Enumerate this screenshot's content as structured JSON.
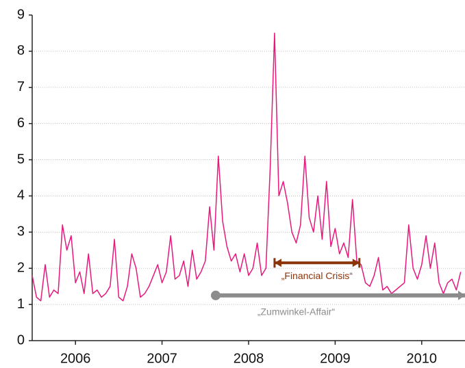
{
  "chart_data": {
    "type": "line",
    "x": [
      2006.0,
      2006.05,
      2006.1,
      2006.15,
      2006.2,
      2006.25,
      2006.3,
      2006.35,
      2006.4,
      2006.45,
      2006.5,
      2006.55,
      2006.6,
      2006.65,
      2006.7,
      2006.75,
      2006.8,
      2006.85,
      2006.9,
      2006.95,
      2007.0,
      2007.05,
      2007.1,
      2007.15,
      2007.2,
      2007.25,
      2007.3,
      2007.35,
      2007.4,
      2007.45,
      2007.5,
      2007.55,
      2007.6,
      2007.65,
      2007.7,
      2007.75,
      2007.8,
      2007.85,
      2007.9,
      2007.95,
      2008.0,
      2008.05,
      2008.1,
      2008.15,
      2008.2,
      2008.25,
      2008.3,
      2008.35,
      2008.4,
      2008.45,
      2008.5,
      2008.55,
      2008.6,
      2008.65,
      2008.7,
      2008.75,
      2008.8,
      2008.85,
      2008.9,
      2008.95,
      2009.0,
      2009.05,
      2009.1,
      2009.15,
      2009.2,
      2009.25,
      2009.3,
      2009.35,
      2009.4,
      2009.45,
      2009.5,
      2009.55,
      2009.6,
      2009.65,
      2009.7,
      2009.75,
      2009.8,
      2009.85,
      2009.9,
      2009.95,
      2010.0,
      2010.05,
      2010.1,
      2010.15,
      2010.2,
      2010.25,
      2010.3,
      2010.35,
      2010.4,
      2010.45,
      2010.5,
      2010.55,
      2010.6,
      2010.65,
      2010.7,
      2010.75,
      2010.8,
      2010.85,
      2010.9,
      2010.95
    ],
    "values": [
      1.8,
      1.2,
      1.1,
      2.1,
      1.2,
      1.4,
      1.3,
      3.2,
      2.5,
      2.9,
      1.6,
      1.9,
      1.3,
      2.4,
      1.3,
      1.4,
      1.2,
      1.3,
      1.5,
      2.8,
      1.2,
      1.1,
      1.5,
      2.4,
      2.0,
      1.2,
      1.3,
      1.5,
      1.8,
      2.1,
      1.6,
      1.9,
      2.9,
      1.7,
      1.8,
      2.2,
      1.5,
      2.5,
      1.7,
      1.9,
      2.2,
      3.7,
      2.5,
      5.1,
      3.3,
      2.6,
      2.2,
      2.4,
      1.9,
      2.4,
      1.8,
      2.0,
      2.7,
      1.8,
      2.0,
      4.8,
      8.5,
      4.0,
      4.4,
      3.8,
      3.0,
      2.7,
      3.2,
      5.1,
      3.4,
      3.0,
      4.0,
      2.8,
      4.4,
      2.6,
      3.1,
      2.4,
      2.7,
      2.3,
      3.9,
      2.2,
      2.1,
      1.6,
      1.5,
      1.8,
      2.3,
      1.4,
      1.5,
      1.3,
      1.4,
      1.5,
      1.6,
      3.2,
      2.0,
      1.7,
      2.1,
      2.9,
      2.0,
      2.7,
      1.6,
      1.3,
      1.6,
      1.7,
      1.4,
      1.9
    ],
    "color": "#e6177d",
    "xlim": [
      2006,
      2011
    ],
    "xticks": [
      {
        "value": 2006.5,
        "label": "2006"
      },
      {
        "value": 2007.5,
        "label": "2007"
      },
      {
        "value": 2008.5,
        "label": "2008"
      },
      {
        "value": 2009.5,
        "label": "2009"
      },
      {
        "value": 2010.5,
        "label": "2010"
      }
    ],
    "ylim": [
      0,
      9
    ],
    "yticks": [
      0,
      1,
      2,
      3,
      4,
      5,
      6,
      7,
      8,
      9
    ],
    "grid": true,
    "annotations": [
      {
        "label": "„Financial Crisis“",
        "x": [
          2008.8,
          2009.78
        ],
        "y": 2.15,
        "color": "#8b3408"
      },
      {
        "label": "„Zumwinkel-Affair“",
        "x": [
          2008.12,
          2011
        ],
        "y": 1.25,
        "color": "#8c8c8c"
      }
    ]
  }
}
